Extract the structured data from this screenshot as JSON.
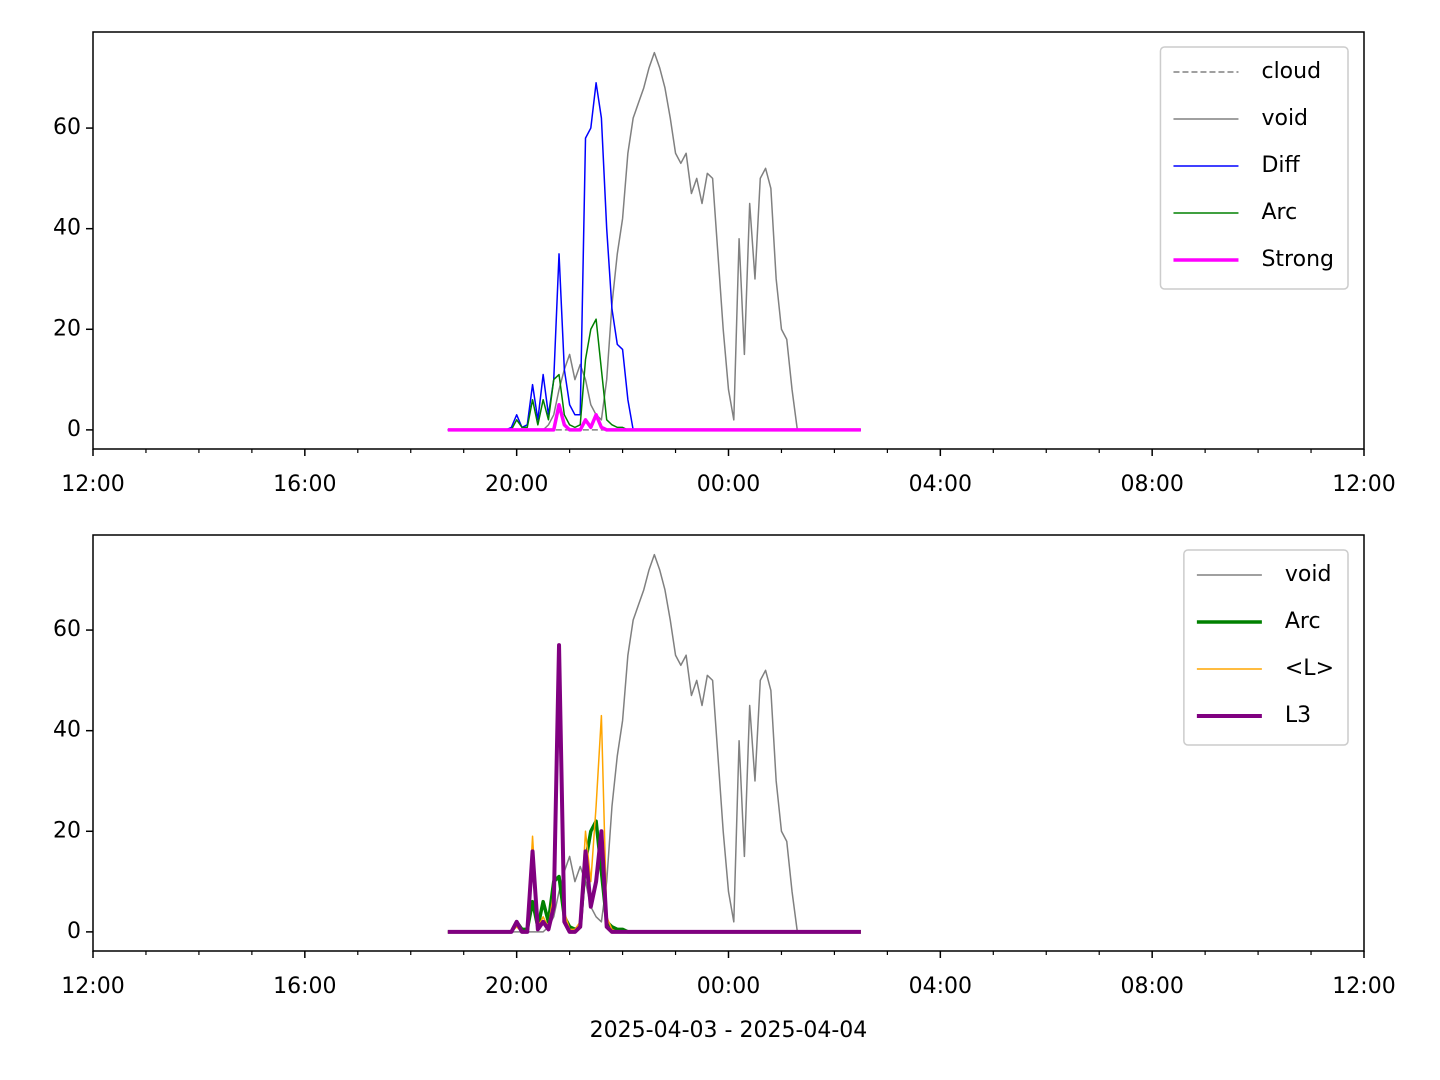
{
  "chart_data": [
    {
      "type": "line",
      "x": [
        18.7,
        18.8,
        18.9,
        19.0,
        19.1,
        19.2,
        19.3,
        19.4,
        19.5,
        19.6,
        19.7,
        19.8,
        19.9,
        20.0,
        20.1,
        20.2,
        20.3,
        20.4,
        20.5,
        20.6,
        20.7,
        20.8,
        20.9,
        21.0,
        21.1,
        21.2,
        21.3,
        21.4,
        21.5,
        21.6,
        21.7,
        21.8,
        21.9,
        22.0,
        22.1,
        22.2,
        22.3,
        22.4,
        22.5,
        22.6,
        22.7,
        22.8,
        22.9,
        23.0,
        23.1,
        23.2,
        23.3,
        23.4,
        23.5,
        23.6,
        23.7,
        23.8,
        23.9,
        24.0,
        24.1,
        24.2,
        24.3,
        24.4,
        24.5,
        24.6,
        24.7,
        24.8,
        24.9,
        25.0,
        25.1,
        25.2,
        25.3,
        25.4,
        25.5,
        25.6,
        25.7,
        25.8,
        25.9,
        26.0,
        26.1,
        26.2,
        26.3,
        26.4,
        26.5
      ],
      "series": [
        {
          "name": "cloud",
          "color": "#808080",
          "linewidth": 1.5,
          "linestyle": "dashed",
          "values": [
            0,
            0,
            0,
            0,
            0,
            0,
            0,
            0,
            0,
            0,
            0,
            0,
            0,
            0,
            0,
            0,
            0,
            0,
            0,
            0,
            0,
            0,
            0,
            0,
            0,
            0,
            0,
            0,
            0,
            0,
            0,
            0,
            0,
            0,
            0,
            0,
            0,
            0,
            0,
            0,
            0,
            0,
            0,
            0,
            0,
            0,
            0,
            0,
            0,
            0,
            0,
            0,
            0,
            0,
            0,
            0,
            0,
            0,
            0,
            0,
            0,
            0,
            0,
            0,
            0,
            0,
            0,
            0,
            0,
            0,
            0,
            0,
            0,
            0,
            0,
            0,
            0,
            0,
            0
          ]
        },
        {
          "name": "void",
          "color": "#808080",
          "linewidth": 1.5,
          "values": [
            0,
            0,
            0,
            0,
            0,
            0,
            0,
            0,
            0,
            0,
            0,
            0,
            0,
            0,
            0,
            0,
            0,
            0,
            0,
            1,
            3,
            8,
            12,
            15,
            10,
            13,
            10,
            5,
            3,
            2,
            10,
            25,
            35,
            42,
            55,
            62,
            65,
            68,
            72,
            75,
            72,
            68,
            62,
            55,
            53,
            55,
            47,
            50,
            45,
            51,
            50,
            35,
            20,
            8,
            2,
            38,
            15,
            45,
            30,
            50,
            52,
            48,
            30,
            20,
            18,
            8,
            0,
            0,
            0,
            0,
            0,
            0,
            0,
            0,
            0,
            0,
            0,
            0,
            0
          ]
        },
        {
          "name": "Diff",
          "color": "#0000ff",
          "linewidth": 1.5,
          "values": [
            0,
            0,
            0,
            0,
            0,
            0,
            0,
            0,
            0,
            0,
            0,
            0,
            0.5,
            3,
            0.5,
            1,
            9,
            2,
            11,
            3,
            10,
            35,
            12,
            5,
            3,
            3,
            58,
            60,
            69,
            62,
            40,
            24,
            17,
            16,
            6,
            0,
            null,
            null,
            null,
            null,
            null,
            null,
            null,
            null,
            null,
            null,
            null,
            null,
            null,
            null,
            null,
            null,
            null,
            null,
            null,
            null,
            null,
            null,
            null,
            null,
            null,
            null,
            null,
            null,
            null,
            null,
            null,
            null,
            null,
            null,
            null,
            null,
            null,
            null,
            null,
            null,
            null,
            null,
            null
          ]
        },
        {
          "name": "Arc",
          "color": "#008000",
          "linewidth": 1.5,
          "values": [
            0,
            0,
            0,
            0,
            0,
            0,
            0,
            0,
            0,
            0,
            0,
            0,
            0,
            2,
            0.5,
            0.5,
            6,
            1,
            6,
            2,
            10,
            11,
            3,
            1,
            0.5,
            1,
            14,
            20,
            22,
            12,
            2,
            1,
            0.5,
            0.5,
            0,
            0,
            0,
            0,
            0,
            0,
            0,
            0,
            0,
            0,
            0,
            0,
            0,
            0,
            0,
            0,
            0,
            0,
            0,
            0,
            0,
            0,
            0,
            0,
            0,
            0,
            0,
            0,
            0,
            0,
            0,
            0,
            0,
            0,
            0,
            0,
            0,
            0,
            0,
            0,
            0,
            0,
            0,
            0,
            0
          ]
        },
        {
          "name": "Strong",
          "color": "#ff00ff",
          "linewidth": 3.5,
          "values": [
            0,
            0,
            0,
            0,
            0,
            0,
            0,
            0,
            0,
            0,
            0,
            0,
            0,
            0,
            0,
            0,
            0,
            0,
            0,
            0,
            0,
            5,
            1,
            0,
            0,
            0,
            2,
            0.5,
            3,
            0.5,
            0,
            0,
            0,
            0,
            0,
            0,
            0,
            0,
            0,
            0,
            0,
            0,
            0,
            0,
            0,
            0,
            0,
            0,
            0,
            0,
            0,
            0,
            0,
            0,
            0,
            0,
            0,
            0,
            0,
            0,
            0,
            0,
            0,
            0,
            0,
            0,
            0,
            0,
            0,
            0,
            0,
            0,
            0,
            0,
            0,
            0,
            0,
            0,
            0
          ]
        }
      ],
      "xlim": [
        12,
        36
      ],
      "xticks": [
        {
          "value": 12,
          "label": "12:00"
        },
        {
          "value": 16,
          "label": "16:00"
        },
        {
          "value": 20,
          "label": "20:00"
        },
        {
          "value": 24,
          "label": "00:00"
        },
        {
          "value": 28,
          "label": "04:00"
        },
        {
          "value": 32,
          "label": "08:00"
        },
        {
          "value": 36,
          "label": "12:00"
        }
      ],
      "xminorticks": [
        13,
        14,
        15,
        17,
        18,
        19,
        21,
        22,
        23,
        25,
        26,
        27,
        29,
        30,
        31,
        33,
        34,
        35
      ],
      "ylim": [
        -3.8,
        79.1
      ],
      "yticks": [
        0,
        20,
        40,
        60
      ],
      "legend": "upper right"
    },
    {
      "type": "line",
      "x": [
        18.7,
        18.8,
        18.9,
        19.0,
        19.1,
        19.2,
        19.3,
        19.4,
        19.5,
        19.6,
        19.7,
        19.8,
        19.9,
        20.0,
        20.1,
        20.2,
        20.3,
        20.4,
        20.5,
        20.6,
        20.7,
        20.8,
        20.9,
        21.0,
        21.1,
        21.2,
        21.3,
        21.4,
        21.5,
        21.6,
        21.7,
        21.8,
        21.9,
        22.0,
        22.1,
        22.2,
        22.3,
        22.4,
        22.5,
        22.6,
        22.7,
        22.8,
        22.9,
        23.0,
        23.1,
        23.2,
        23.3,
        23.4,
        23.5,
        23.6,
        23.7,
        23.8,
        23.9,
        24.0,
        24.1,
        24.2,
        24.3,
        24.4,
        24.5,
        24.6,
        24.7,
        24.8,
        24.9,
        25.0,
        25.1,
        25.2,
        25.3,
        25.4,
        25.5,
        25.6,
        25.7,
        25.8,
        25.9,
        26.0,
        26.1,
        26.2,
        26.3,
        26.4,
        26.5
      ],
      "series": [
        {
          "name": "void",
          "color": "#808080",
          "linewidth": 1.5,
          "values": [
            0,
            0,
            0,
            0,
            0,
            0,
            0,
            0,
            0,
            0,
            0,
            0,
            0,
            0,
            0,
            0,
            0,
            0,
            0,
            1,
            3,
            8,
            12,
            15,
            10,
            13,
            10,
            5,
            3,
            2,
            10,
            25,
            35,
            42,
            55,
            62,
            65,
            68,
            72,
            75,
            72,
            68,
            62,
            55,
            53,
            55,
            47,
            50,
            45,
            51,
            50,
            35,
            20,
            8,
            2,
            38,
            15,
            45,
            30,
            50,
            52,
            48,
            30,
            20,
            18,
            8,
            0,
            0,
            0,
            0,
            0,
            0,
            0,
            0,
            0,
            0,
            0,
            0,
            0
          ]
        },
        {
          "name": "Arc",
          "color": "#008000",
          "linewidth": 3.5,
          "values": [
            0,
            0,
            0,
            0,
            0,
            0,
            0,
            0,
            0,
            0,
            0,
            0,
            0,
            2,
            0.5,
            0.5,
            6,
            1,
            6,
            2,
            10,
            11,
            3,
            1,
            0.5,
            1,
            14,
            20,
            22,
            12,
            2,
            1,
            0.5,
            0.5,
            0,
            0,
            0,
            0,
            0,
            0,
            0,
            0,
            0,
            0,
            0,
            0,
            0,
            0,
            0,
            0,
            0,
            0,
            0,
            0,
            0,
            0,
            0,
            0,
            0,
            0,
            0,
            0,
            0,
            0,
            0,
            0,
            0,
            0,
            0,
            0,
            0,
            0,
            0,
            0,
            0,
            0,
            0,
            0,
            0
          ]
        },
        {
          "name": "<L>",
          "color": "#ffa500",
          "linewidth": 1.5,
          "values": [
            0,
            0,
            0,
            0,
            0,
            0,
            0,
            0,
            0,
            0,
            0,
            0,
            0,
            1,
            0,
            0,
            19,
            1,
            3,
            1,
            8,
            55,
            4,
            0.5,
            0.5,
            2,
            20,
            10,
            25,
            43,
            3,
            0.5,
            0,
            0,
            0,
            0,
            0,
            0,
            0,
            0,
            0,
            0,
            0,
            0,
            0,
            0,
            0,
            0,
            0,
            0,
            0,
            0,
            0,
            0,
            0,
            0,
            0,
            0,
            0,
            0,
            0,
            0,
            0,
            0,
            0,
            0,
            0,
            0,
            0,
            0,
            0,
            0,
            0,
            0,
            0,
            0,
            0,
            0,
            0
          ]
        },
        {
          "name": "L3",
          "color": "#800080",
          "linewidth": 4,
          "values": [
            0,
            0,
            0,
            0,
            0,
            0,
            0,
            0,
            0,
            0,
            0,
            0,
            0,
            2,
            0,
            0,
            16,
            0.5,
            2,
            0.5,
            5,
            57,
            2,
            0,
            0,
            1,
            16,
            5,
            10,
            20,
            1,
            0,
            0,
            0,
            0,
            0,
            0,
            0,
            0,
            0,
            0,
            0,
            0,
            0,
            0,
            0,
            0,
            0,
            0,
            0,
            0,
            0,
            0,
            0,
            0,
            0,
            0,
            0,
            0,
            0,
            0,
            0,
            0,
            0,
            0,
            0,
            0,
            0,
            0,
            0,
            0,
            0,
            0,
            0,
            0,
            0,
            0,
            0,
            0
          ]
        }
      ],
      "xlim": [
        12,
        36
      ],
      "xticks": [
        {
          "value": 12,
          "label": "12:00"
        },
        {
          "value": 16,
          "label": "16:00"
        },
        {
          "value": 20,
          "label": "20:00"
        },
        {
          "value": 24,
          "label": "00:00"
        },
        {
          "value": 28,
          "label": "04:00"
        },
        {
          "value": 32,
          "label": "08:00"
        },
        {
          "value": 36,
          "label": "12:00"
        }
      ],
      "xminorticks": [
        13,
        14,
        15,
        17,
        18,
        19,
        21,
        22,
        23,
        25,
        26,
        27,
        29,
        30,
        31,
        33,
        34,
        35
      ],
      "ylim": [
        -3.8,
        78.9
      ],
      "yticks": [
        0,
        20,
        40,
        60
      ],
      "legend": "upper right",
      "xlabel": "2025-04-03 - 2025-04-04"
    }
  ]
}
